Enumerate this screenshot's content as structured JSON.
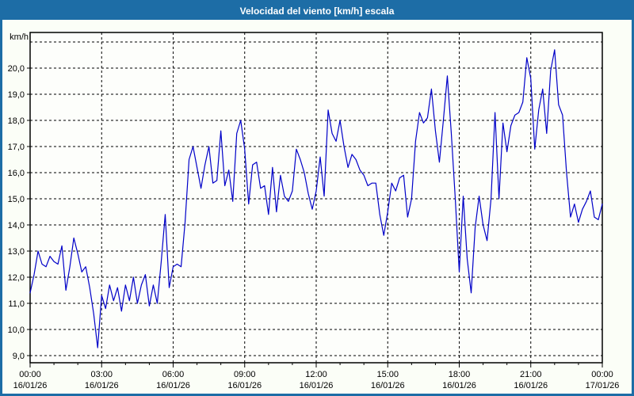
{
  "window": {
    "title": "Velocidad del viento [km/h] escala"
  },
  "colors": {
    "titlebar": "#1d6da6",
    "window_border": "#1d6da6",
    "background": "#fbfef7",
    "plot_background": "#fdfefb",
    "plot_border": "#000000",
    "gridline": "#000000",
    "tick": "#000000",
    "text": "#000000",
    "series_line": "#0000c8"
  },
  "chart_data": {
    "type": "line",
    "title": "Velocidad del viento [km/h] escala",
    "unit_label": "km/h",
    "ylabel": "km/h",
    "xlabel": "",
    "legend": "none",
    "grid": "dashed",
    "ylim": [
      8.73,
      21.36
    ],
    "grid_y_values": [
      9,
      10,
      11,
      12,
      13,
      14,
      15,
      16,
      17,
      18,
      19,
      20,
      21
    ],
    "y_ticks": [
      {
        "value": 20,
        "label": "20,0"
      },
      {
        "value": 19,
        "label": "19,0"
      },
      {
        "value": 18,
        "label": "18,0"
      },
      {
        "value": 17,
        "label": "17,0"
      },
      {
        "value": 16,
        "label": "16,0"
      },
      {
        "value": 15,
        "label": "15,0"
      },
      {
        "value": 14,
        "label": "14,0"
      },
      {
        "value": 13,
        "label": "13,0"
      },
      {
        "value": 12,
        "label": "12,0"
      },
      {
        "value": 11,
        "label": "11,0"
      },
      {
        "value": 10,
        "label": "10,0"
      },
      {
        "value": 9,
        "label": "9,0"
      }
    ],
    "x_range_hours": [
      0,
      24
    ],
    "x_minor_tick_step_hours": 1,
    "x_ticks": [
      {
        "hours": 0,
        "time": "00:00",
        "date": "16/01/26"
      },
      {
        "hours": 3,
        "time": "03:00",
        "date": "16/01/26"
      },
      {
        "hours": 6,
        "time": "06:00",
        "date": "16/01/26"
      },
      {
        "hours": 9,
        "time": "09:00",
        "date": "16/01/26"
      },
      {
        "hours": 12,
        "time": "12:00",
        "date": "16/01/26"
      },
      {
        "hours": 15,
        "time": "15:00",
        "date": "16/01/26"
      },
      {
        "hours": 18,
        "time": "18:00",
        "date": "16/01/26"
      },
      {
        "hours": 21,
        "time": "21:00",
        "date": "16/01/26"
      },
      {
        "hours": 24,
        "time": "00:00",
        "date": "17/01/26"
      }
    ],
    "series": [
      {
        "name": "Velocidad del viento",
        "color": "#0000c8",
        "start": "00:00 16/01/26",
        "sample_interval_minutes": 10,
        "values": [
          11.4,
          12.1,
          13.0,
          12.5,
          12.4,
          12.8,
          12.6,
          12.5,
          13.2,
          11.5,
          12.4,
          13.5,
          12.9,
          12.2,
          12.4,
          11.6,
          10.6,
          9.3,
          11.3,
          10.8,
          11.7,
          11.1,
          11.6,
          10.7,
          11.7,
          11.1,
          12.0,
          11.0,
          11.7,
          12.1,
          10.9,
          11.7,
          11.0,
          12.6,
          14.4,
          11.6,
          12.4,
          12.5,
          12.4,
          14.1,
          16.5,
          17.0,
          16.2,
          15.4,
          16.3,
          17.0,
          15.6,
          15.7,
          17.6,
          15.5,
          16.1,
          14.9,
          17.5,
          18.0,
          16.9,
          14.8,
          16.3,
          16.4,
          15.4,
          15.5,
          14.4,
          16.2,
          14.5,
          15.9,
          15.1,
          14.9,
          15.3,
          16.9,
          16.5,
          16.0,
          15.2,
          14.6,
          15.3,
          16.6,
          15.1,
          18.4,
          17.5,
          17.2,
          18.0,
          17.0,
          16.2,
          16.7,
          16.5,
          16.1,
          15.9,
          15.5,
          15.6,
          15.6,
          14.4,
          13.6,
          14.5,
          15.6,
          15.3,
          15.8,
          15.9,
          14.3,
          15.0,
          17.2,
          18.3,
          17.9,
          18.1,
          19.2,
          17.6,
          16.4,
          18.0,
          19.7,
          17.5,
          15.0,
          12.2,
          15.1,
          12.7,
          11.4,
          13.9,
          15.1,
          14.0,
          13.4,
          15.0,
          18.3,
          15.0,
          17.9,
          16.8,
          17.8,
          18.2,
          18.3,
          18.7,
          20.4,
          19.6,
          16.9,
          18.4,
          19.2,
          17.5,
          19.9,
          20.7,
          18.6,
          18.2,
          16.0,
          14.3,
          14.8,
          14.1,
          14.6,
          14.9,
          15.3,
          14.3,
          14.2,
          14.8
        ]
      }
    ]
  }
}
